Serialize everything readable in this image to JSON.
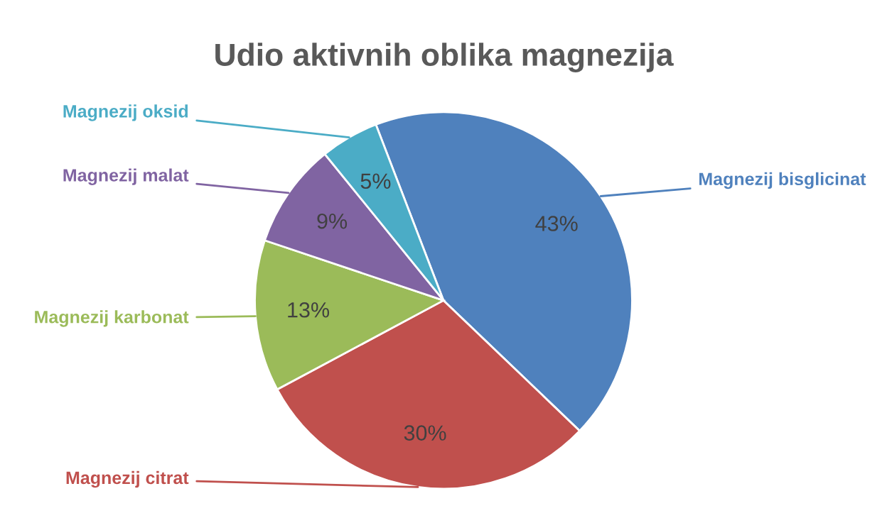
{
  "chart_data": {
    "type": "pie",
    "title": "Udio aktivnih oblika magnezija",
    "categories": [
      "Magnezij bisglicinat",
      "Magnezij citrat",
      "Magnezij karbonat",
      "Magnezij malat",
      "Magnezij oksid"
    ],
    "values": [
      43,
      30,
      13,
      9,
      5
    ],
    "value_labels": [
      "43%",
      "30%",
      "13%",
      "9%",
      "5%"
    ],
    "colors": [
      "#4f81bd",
      "#c0504d",
      "#9bbb59",
      "#8064a2",
      "#4bacc6"
    ],
    "legend": false
  }
}
